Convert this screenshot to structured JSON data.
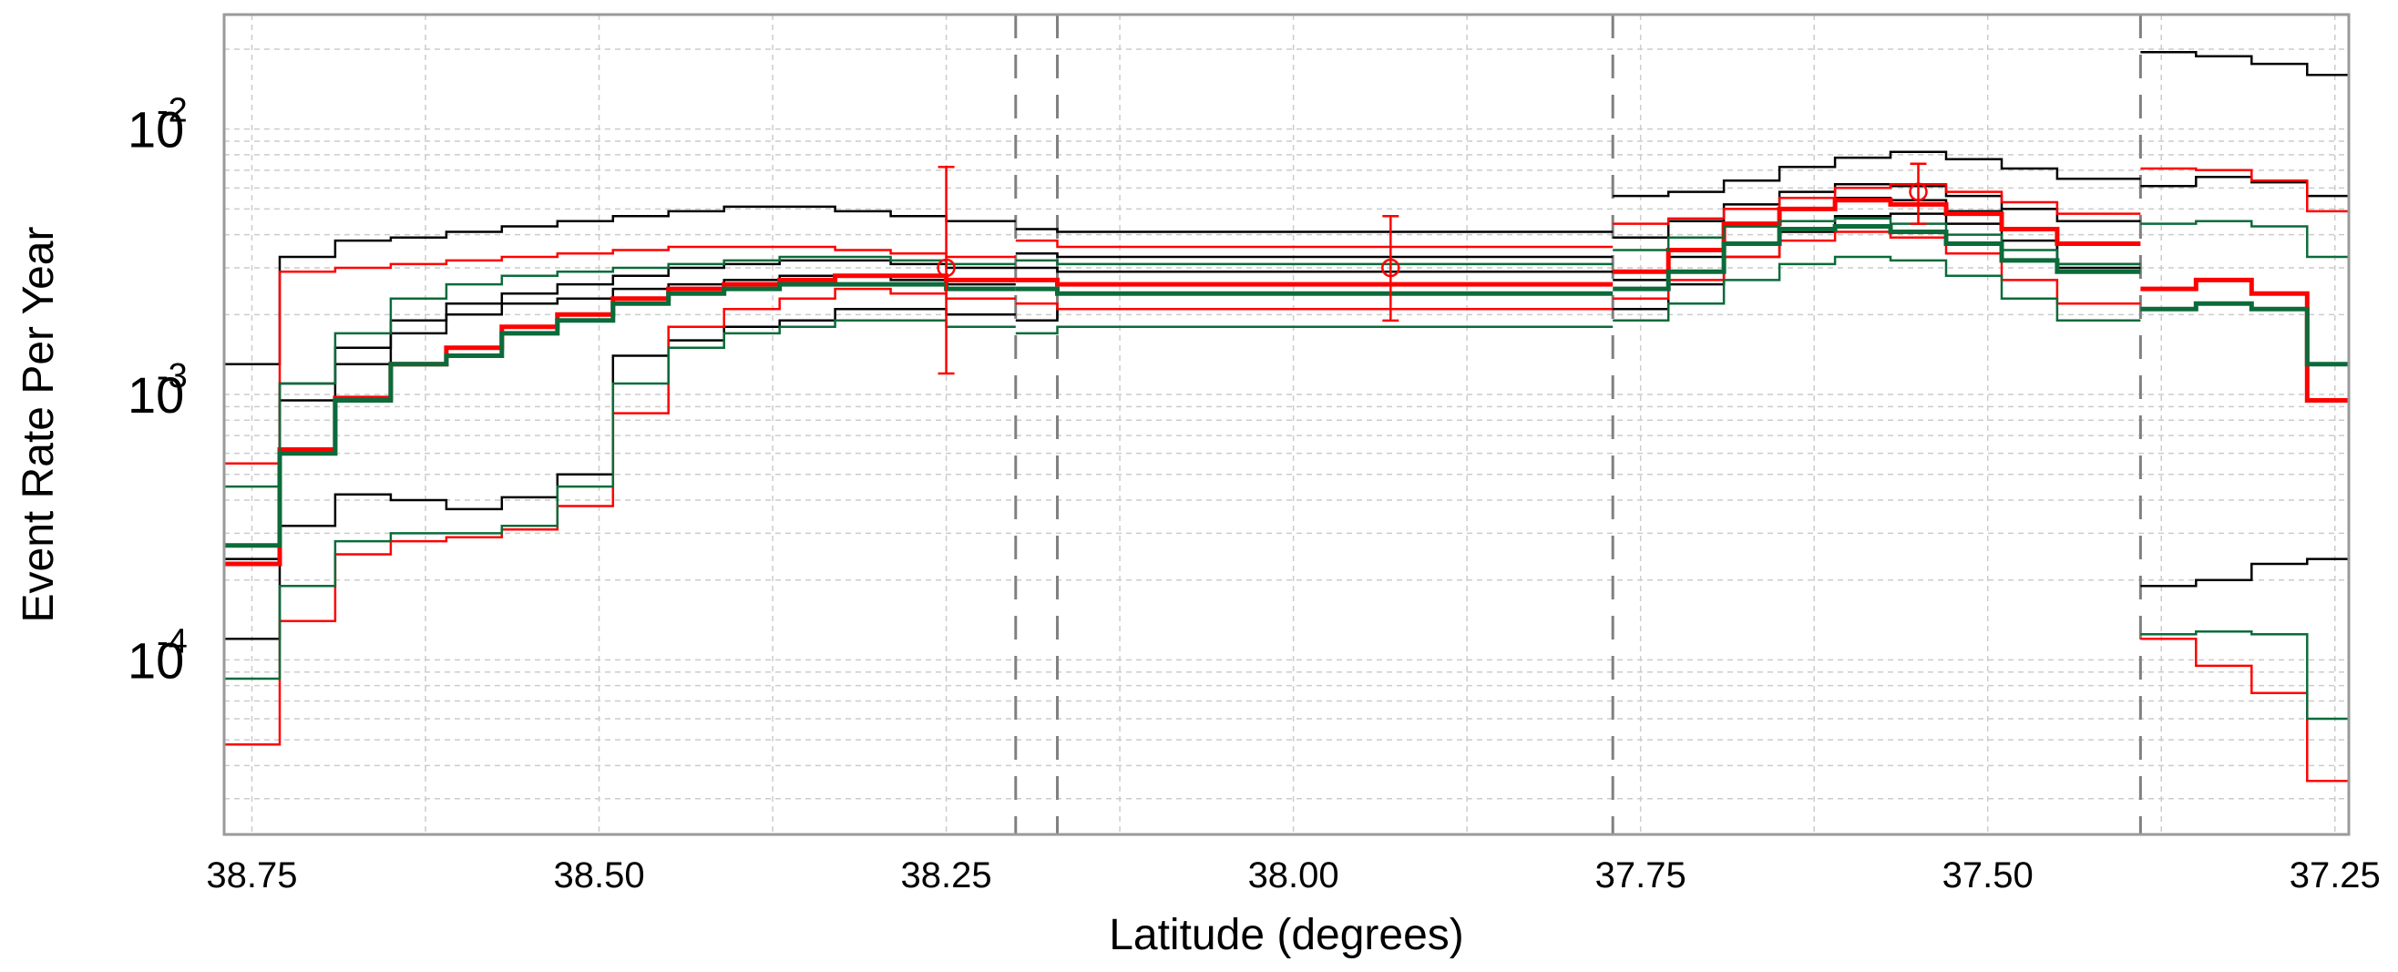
{
  "chart_data": {
    "type": "line",
    "step": true,
    "xlabel": "Latitude (degrees)",
    "ylabel": "Event Rate Per Year",
    "x_reversed": true,
    "xlim": [
      38.77,
      37.24
    ],
    "ylim": [
      2.2e-05,
      0.027
    ],
    "yscale": "log",
    "grid": true,
    "legend": "none",
    "x_ticks": [
      38.75,
      38.5,
      38.25,
      38.0,
      37.75,
      37.5,
      37.25
    ],
    "x_tick_labels": [
      "38.75",
      "38.50",
      "38.25",
      "38.00",
      "37.75",
      "37.50",
      "37.25"
    ],
    "y_ticks": [
      {
        "value": 0.01,
        "base": "10",
        "exp": "-2"
      },
      {
        "value": 0.001,
        "base": "10",
        "exp": "-3"
      },
      {
        "value": 0.0001,
        "base": "10",
        "exp": "-4"
      }
    ],
    "vlines": [
      38.2,
      38.17,
      37.77,
      37.39
    ],
    "colors": {
      "black": "#000000",
      "red": "#ff0000",
      "green": "#0b6b3a",
      "vline": "#808080",
      "grid": "#cccccc",
      "frame": "#9a9a9a"
    },
    "series": [
      {
        "color": "black",
        "width": 2.5,
        "segments": [
          {
            "edges": [
              38.77,
              38.73,
              38.69,
              38.65,
              38.61,
              38.57,
              38.53,
              38.49,
              38.45,
              38.41,
              38.37,
              38.33,
              38.29,
              38.25,
              38.2
            ],
            "values": [
              0.0013,
              0.0033,
              0.0038,
              0.0039,
              0.0041,
              0.0043,
              0.0045,
              0.0047,
              0.0049,
              0.0051,
              0.0051,
              0.0049,
              0.0047,
              0.0045
            ]
          },
          {
            "edges": [
              38.2,
              38.17,
              37.77
            ],
            "values": [
              0.0042,
              0.0041
            ]
          },
          {
            "edges": [
              37.77,
              37.73,
              37.69,
              37.65,
              37.61,
              37.57,
              37.53,
              37.49,
              37.45,
              37.39
            ],
            "values": [
              0.0056,
              0.0058,
              0.0064,
              0.0072,
              0.0078,
              0.0082,
              0.0077,
              0.0071,
              0.0065
            ]
          },
          {
            "edges": [
              37.39,
              37.35,
              37.31,
              37.27,
              37.24
            ],
            "values": [
              0.0195,
              0.0188,
              0.0176,
              0.016
            ]
          }
        ]
      },
      {
        "color": "black",
        "width": 2.5,
        "segments": [
          {
            "edges": [
              38.77,
              38.73,
              38.69,
              38.65,
              38.61,
              38.57,
              38.53,
              38.49,
              38.45,
              38.41,
              38.37,
              38.33,
              38.29,
              38.25,
              38.2
            ],
            "values": [
              0.00055,
              0.0011,
              0.0015,
              0.0019,
              0.0022,
              0.0024,
              0.0026,
              0.0028,
              0.003,
              0.0031,
              0.0032,
              0.0032,
              0.0031,
              0.003
            ]
          },
          {
            "edges": [
              38.2,
              38.17,
              37.77
            ],
            "values": [
              0.0034,
              0.0033
            ]
          },
          {
            "edges": [
              37.77,
              37.73,
              37.69,
              37.65,
              37.61,
              37.57,
              37.53,
              37.49,
              37.45,
              37.39
            ],
            "values": [
              0.0039,
              0.0045,
              0.0052,
              0.0058,
              0.0062,
              0.0061,
              0.0056,
              0.005,
              0.0045
            ]
          },
          {
            "edges": [
              37.39,
              37.35,
              37.31,
              37.27,
              37.24
            ],
            "values": [
              0.0061,
              0.0066,
              0.0063,
              0.0056
            ]
          }
        ]
      },
      {
        "color": "black",
        "width": 2.5,
        "segments": [
          {
            "edges": [
              38.77,
              38.73,
              38.69,
              38.65,
              38.61,
              38.57,
              38.53,
              38.49,
              38.45,
              38.41,
              38.37,
              38.33,
              38.29,
              38.25,
              38.2
            ],
            "values": [
              0.00024,
              0.00095,
              0.0013,
              0.0017,
              0.002,
              0.0022,
              0.0023,
              0.0025,
              0.0026,
              0.0027,
              0.0028,
              0.0028,
              0.0027,
              0.0026
            ]
          },
          {
            "edges": [
              38.2,
              38.17,
              37.77
            ],
            "values": [
              0.003,
              0.0029
            ]
          },
          {
            "edges": [
              37.77,
              37.73,
              37.69,
              37.65,
              37.61,
              37.57,
              37.53,
              37.49,
              37.45,
              37.39
            ],
            "values": [
              0.0027,
              0.0033,
              0.0043,
              0.005,
              0.0055,
              0.0054,
              0.0049,
              0.0042,
              0.0031
            ]
          }
        ]
      },
      {
        "color": "black",
        "width": 2.5,
        "segments": [
          {
            "edges": [
              38.77,
              38.73,
              38.69,
              38.65,
              38.61,
              38.57,
              38.53,
              38.49,
              38.45,
              38.41,
              38.37,
              38.33,
              38.29,
              38.25,
              38.2
            ],
            "values": [
              0.00012,
              0.00032,
              0.00042,
              0.0004,
              0.00037,
              0.00041,
              0.0005,
              0.0014,
              0.0016,
              0.0018,
              0.0019,
              0.0021,
              0.0021,
              0.002
            ]
          },
          {
            "edges": [
              38.2,
              38.17,
              37.77
            ],
            "values": [
              0.0019,
              0.0021
            ]
          },
          {
            "edges": [
              37.77,
              37.73,
              37.69,
              37.65,
              37.61,
              37.57,
              37.53,
              37.49,
              37.45,
              37.39
            ],
            "values": [
              0.0021,
              0.0026,
              0.0033,
              0.0041,
              0.0047,
              0.0048,
              0.0044,
              0.0038,
              0.003
            ]
          },
          {
            "edges": [
              37.39,
              37.35,
              37.31,
              37.27,
              37.24
            ],
            "values": [
              0.00019,
              0.0002,
              0.00023,
              0.00024
            ]
          }
        ]
      },
      {
        "color": "red",
        "width": 2.5,
        "segments": [
          {
            "edges": [
              38.77,
              38.73,
              38.69,
              38.65,
              38.61,
              38.57,
              38.53,
              38.49,
              38.45,
              38.41,
              38.37,
              38.33,
              38.29,
              38.25,
              38.2
            ],
            "values": [
              0.00055,
              0.0029,
              0.003,
              0.0031,
              0.0032,
              0.0033,
              0.0034,
              0.0035,
              0.0036,
              0.0036,
              0.0036,
              0.0035,
              0.0034,
              0.0033
            ]
          },
          {
            "edges": [
              38.2,
              38.17,
              37.77
            ],
            "values": [
              0.0038,
              0.0036
            ]
          },
          {
            "edges": [
              37.77,
              37.73,
              37.69,
              37.65,
              37.61,
              37.57,
              37.53,
              37.49,
              37.45,
              37.39
            ],
            "values": [
              0.0044,
              0.0046,
              0.005,
              0.0055,
              0.006,
              0.0062,
              0.0058,
              0.0053,
              0.0048
            ]
          },
          {
            "edges": [
              37.39,
              37.35,
              37.31,
              37.27,
              37.24
            ],
            "values": [
              0.0071,
              0.007,
              0.0064,
              0.0049
            ]
          }
        ]
      },
      {
        "color": "red",
        "width": 2.5,
        "segments": [
          {
            "edges": [
              38.77,
              38.73,
              38.69,
              38.65,
              38.61,
              38.57,
              38.53,
              38.49,
              38.45,
              38.41,
              38.37,
              38.33,
              38.29,
              38.25,
              38.2
            ],
            "values": [
              4.8e-05,
              0.00014,
              0.00025,
              0.00028,
              0.00029,
              0.00031,
              0.00038,
              0.00085,
              0.0018,
              0.0021,
              0.0023,
              0.0025,
              0.0024,
              0.0023
            ]
          },
          {
            "edges": [
              38.2,
              38.17,
              37.77
            ],
            "values": [
              0.0022,
              0.0021
            ]
          },
          {
            "edges": [
              37.77,
              37.73,
              37.69,
              37.65,
              37.61,
              37.57,
              37.53,
              37.49,
              37.45,
              37.39
            ],
            "values": [
              0.0023,
              0.0027,
              0.0033,
              0.0038,
              0.0041,
              0.0039,
              0.0034,
              0.0027,
              0.0022
            ]
          },
          {
            "edges": [
              37.39,
              37.35,
              37.31,
              37.27,
              37.24
            ],
            "values": [
              0.00012,
              9.5e-05,
              7.5e-05,
              3.5e-05
            ]
          }
        ]
      },
      {
        "color": "red",
        "width": 5,
        "segments": [
          {
            "edges": [
              38.77,
              38.73,
              38.69,
              38.65,
              38.61,
              38.57,
              38.53,
              38.49,
              38.45,
              38.41,
              38.37,
              38.33,
              38.29,
              38.25,
              38.2
            ],
            "values": [
              0.00023,
              0.00062,
              0.00097,
              0.0013,
              0.0015,
              0.0018,
              0.002,
              0.0023,
              0.0025,
              0.0026,
              0.0027,
              0.0028,
              0.0028,
              0.0027
            ]
          },
          {
            "edges": [
              38.2,
              38.17,
              37.77
            ],
            "values": [
              0.0027,
              0.0026
            ]
          },
          {
            "edges": [
              37.77,
              37.73,
              37.69,
              37.65,
              37.61,
              37.57,
              37.53,
              37.49,
              37.45,
              37.39
            ],
            "values": [
              0.0029,
              0.0035,
              0.0044,
              0.005,
              0.0054,
              0.0052,
              0.0048,
              0.0042,
              0.0037
            ]
          },
          {
            "edges": [
              37.39,
              37.35,
              37.31,
              37.27,
              37.24
            ],
            "values": [
              0.0025,
              0.0027,
              0.0024,
              0.00095
            ]
          }
        ]
      },
      {
        "color": "green",
        "width": 2.5,
        "segments": [
          {
            "edges": [
              38.77,
              38.73,
              38.69,
              38.65,
              38.61,
              38.57,
              38.53,
              38.49,
              38.45,
              38.41,
              38.37,
              38.33,
              38.29,
              38.25,
              38.2
            ],
            "values": [
              0.00045,
              0.0011,
              0.0017,
              0.0023,
              0.0026,
              0.0028,
              0.0029,
              0.003,
              0.0031,
              0.0032,
              0.0033,
              0.0033,
              0.0032,
              0.0031
            ]
          },
          {
            "edges": [
              38.2,
              38.17,
              37.77
            ],
            "values": [
              0.0032,
              0.0031
            ]
          },
          {
            "edges": [
              37.77,
              37.73,
              37.69,
              37.65,
              37.61,
              37.57,
              37.53,
              37.49,
              37.45,
              37.39
            ],
            "values": [
              0.0035,
              0.0039,
              0.0043,
              0.0045,
              0.0046,
              0.0044,
              0.004,
              0.0035,
              0.0031
            ]
          },
          {
            "edges": [
              37.39,
              37.35,
              37.31,
              37.27,
              37.24
            ],
            "values": [
              0.0044,
              0.0045,
              0.0043,
              0.0033
            ]
          }
        ]
      },
      {
        "color": "green",
        "width": 2.5,
        "segments": [
          {
            "edges": [
              38.77,
              38.73,
              38.69,
              38.65,
              38.61,
              38.57,
              38.53,
              38.49,
              38.45,
              38.41,
              38.37,
              38.33,
              38.29,
              38.25,
              38.2
            ],
            "values": [
              8.5e-05,
              0.00019,
              0.00028,
              0.0003,
              0.0003,
              0.00032,
              0.00045,
              0.0011,
              0.0015,
              0.0017,
              0.0018,
              0.0019,
              0.0019,
              0.0018
            ]
          },
          {
            "edges": [
              38.2,
              38.17,
              37.77
            ],
            "values": [
              0.0017,
              0.0018
            ]
          },
          {
            "edges": [
              37.77,
              37.73,
              37.69,
              37.65,
              37.61,
              37.57,
              37.53,
              37.49,
              37.45,
              37.39
            ],
            "values": [
              0.0019,
              0.0022,
              0.0027,
              0.0031,
              0.0033,
              0.0032,
              0.0028,
              0.0023,
              0.0019
            ]
          },
          {
            "edges": [
              37.39,
              37.35,
              37.31,
              37.27,
              37.24
            ],
            "values": [
              0.000125,
              0.000128,
              0.000125,
              6e-05
            ]
          }
        ]
      },
      {
        "color": "green",
        "width": 5,
        "segments": [
          {
            "edges": [
              38.77,
              38.73,
              38.69,
              38.65,
              38.61,
              38.57,
              38.53,
              38.49,
              38.45,
              38.41,
              38.37,
              38.33,
              38.29,
              38.25,
              38.2
            ],
            "values": [
              0.00027,
              0.0006,
              0.00095,
              0.0013,
              0.0014,
              0.0017,
              0.0019,
              0.0022,
              0.0024,
              0.0025,
              0.0026,
              0.0026,
              0.0026,
              0.0025
            ]
          },
          {
            "edges": [
              38.2,
              38.17,
              37.77
            ],
            "values": [
              0.0025,
              0.0024
            ]
          },
          {
            "edges": [
              37.77,
              37.73,
              37.69,
              37.65,
              37.61,
              37.57,
              37.53,
              37.49,
              37.45,
              37.39
            ],
            "values": [
              0.0025,
              0.0029,
              0.0037,
              0.0042,
              0.0043,
              0.0041,
              0.0037,
              0.0032,
              0.0029
            ]
          },
          {
            "edges": [
              37.39,
              37.35,
              37.31,
              37.27,
              37.24
            ],
            "values": [
              0.0021,
              0.0022,
              0.0021,
              0.0013
            ]
          }
        ]
      }
    ],
    "data_points": [
      {
        "x": 38.25,
        "y": 0.003,
        "ylow": 0.0012,
        "yhigh": 0.0072,
        "color": "red"
      },
      {
        "x": 37.93,
        "y": 0.003,
        "ylow": 0.0019,
        "yhigh": 0.0047,
        "color": "red"
      },
      {
        "x": 37.55,
        "y": 0.0058,
        "ylow": 0.0044,
        "yhigh": 0.0074,
        "color": "red"
      }
    ]
  }
}
